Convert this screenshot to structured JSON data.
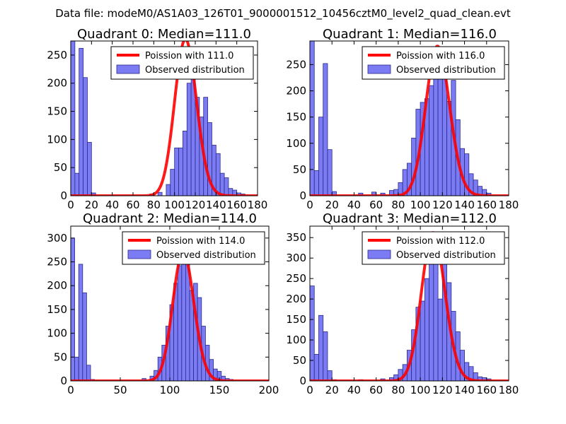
{
  "figure_title": "Data file: modeM0/AS1A03_126T01_9000001512_10456cztM0_level2_quad_clean.evt",
  "colors": {
    "bar_fill": "#7b7bf3",
    "bar_edge": "#2b2b8a",
    "curve": "#ff0000",
    "axis": "#000000"
  },
  "chart_data": [
    {
      "type": "bar",
      "title": "Quadrant 0: Median=111.0",
      "xlim": [
        0,
        180
      ],
      "ylim": [
        0,
        275
      ],
      "xticks": [
        0,
        20,
        40,
        60,
        80,
        100,
        120,
        140,
        160,
        180
      ],
      "yticks": [
        0,
        50,
        100,
        150,
        200,
        250
      ],
      "bin_width": 4,
      "bins": [
        [
          0,
          275
        ],
        [
          4,
          40
        ],
        [
          8,
          262
        ],
        [
          12,
          210
        ],
        [
          16,
          95
        ],
        [
          20,
          5
        ],
        [
          76,
          3
        ],
        [
          84,
          6
        ],
        [
          92,
          20
        ],
        [
          96,
          47
        ],
        [
          100,
          85
        ],
        [
          104,
          85
        ],
        [
          108,
          115
        ],
        [
          112,
          200
        ],
        [
          116,
          230
        ],
        [
          120,
          175
        ],
        [
          124,
          140
        ],
        [
          128,
          175
        ],
        [
          132,
          130
        ],
        [
          136,
          90
        ],
        [
          140,
          75
        ],
        [
          144,
          40
        ],
        [
          148,
          32
        ],
        [
          152,
          13
        ],
        [
          156,
          10
        ],
        [
          160,
          5
        ],
        [
          164,
          3
        ]
      ],
      "poisson_lambda": 111.0,
      "poisson_scale": 278,
      "legend": [
        "Poission with 111.0",
        "Observed distribution"
      ]
    },
    {
      "type": "bar",
      "title": "Quadrant 1: Median=116.0",
      "xlim": [
        0,
        180
      ],
      "ylim": [
        0,
        295
      ],
      "xticks": [
        0,
        20,
        40,
        60,
        80,
        100,
        120,
        140,
        160,
        180
      ],
      "yticks": [
        0,
        50,
        100,
        150,
        200,
        250
      ],
      "bin_width": 4,
      "bins": [
        [
          0,
          295
        ],
        [
          4,
          48
        ],
        [
          8,
          150
        ],
        [
          12,
          252
        ],
        [
          16,
          88
        ],
        [
          20,
          8
        ],
        [
          44,
          5
        ],
        [
          56,
          7
        ],
        [
          64,
          5
        ],
        [
          72,
          10
        ],
        [
          76,
          12
        ],
        [
          80,
          25
        ],
        [
          84,
          50
        ],
        [
          88,
          62
        ],
        [
          92,
          110
        ],
        [
          96,
          165
        ],
        [
          100,
          178
        ],
        [
          104,
          185
        ],
        [
          108,
          210
        ],
        [
          112,
          235
        ],
        [
          116,
          265
        ],
        [
          120,
          240
        ],
        [
          124,
          180
        ],
        [
          128,
          220
        ],
        [
          132,
          145
        ],
        [
          136,
          90
        ],
        [
          140,
          80
        ],
        [
          144,
          42
        ],
        [
          148,
          30
        ],
        [
          152,
          18
        ],
        [
          156,
          12
        ],
        [
          160,
          5
        ]
      ],
      "poisson_lambda": 116.0,
      "poisson_scale": 285,
      "legend": [
        "Poission with 116.0",
        "Observed distribution"
      ]
    },
    {
      "type": "bar",
      "title": "Quadrant 2: Median=114.0",
      "xlim": [
        0,
        200
      ],
      "ylim": [
        0,
        325
      ],
      "xticks": [
        0,
        50,
        100,
        150,
        200
      ],
      "yticks": [
        0,
        50,
        100,
        150,
        200,
        250,
        300
      ],
      "bin_width": 4,
      "bins": [
        [
          0,
          300
        ],
        [
          4,
          50
        ],
        [
          8,
          245
        ],
        [
          12,
          185
        ],
        [
          16,
          33
        ],
        [
          20,
          3
        ],
        [
          72,
          5
        ],
        [
          80,
          10
        ],
        [
          84,
          22
        ],
        [
          88,
          50
        ],
        [
          92,
          75
        ],
        [
          96,
          115
        ],
        [
          100,
          160
        ],
        [
          104,
          205
        ],
        [
          108,
          242
        ],
        [
          112,
          265
        ],
        [
          116,
          255
        ],
        [
          120,
          190
        ],
        [
          124,
          205
        ],
        [
          128,
          175
        ],
        [
          132,
          115
        ],
        [
          136,
          75
        ],
        [
          140,
          45
        ],
        [
          144,
          25
        ],
        [
          148,
          20
        ],
        [
          152,
          10
        ],
        [
          156,
          5
        ],
        [
          160,
          3
        ]
      ],
      "poisson_lambda": 114.0,
      "poisson_scale": 270,
      "legend": [
        "Poission with 114.0",
        "Observed distribution"
      ]
    },
    {
      "type": "bar",
      "title": "Quadrant 3: Median=112.0",
      "xlim": [
        0,
        180
      ],
      "ylim": [
        0,
        378
      ],
      "xticks": [
        0,
        20,
        40,
        60,
        80,
        100,
        120,
        140,
        160,
        180
      ],
      "yticks": [
        0,
        50,
        100,
        150,
        200,
        250,
        300,
        350
      ],
      "bin_width": 4,
      "bins": [
        [
          0,
          232
        ],
        [
          4,
          65
        ],
        [
          8,
          160
        ],
        [
          12,
          120
        ],
        [
          16,
          25
        ],
        [
          20,
          3
        ],
        [
          44,
          3
        ],
        [
          64,
          5
        ],
        [
          72,
          8
        ],
        [
          76,
          15
        ],
        [
          80,
          28
        ],
        [
          84,
          40
        ],
        [
          88,
          75
        ],
        [
          92,
          125
        ],
        [
          96,
          180
        ],
        [
          100,
          195
        ],
        [
          104,
          250
        ],
        [
          108,
          310
        ],
        [
          112,
          330
        ],
        [
          116,
          200
        ],
        [
          120,
          295
        ],
        [
          124,
          240
        ],
        [
          128,
          170
        ],
        [
          132,
          120
        ],
        [
          136,
          75
        ],
        [
          140,
          45
        ],
        [
          144,
          35
        ],
        [
          148,
          20
        ],
        [
          152,
          10
        ],
        [
          156,
          8
        ],
        [
          160,
          5
        ]
      ],
      "poisson_lambda": 112.0,
      "poisson_scale": 362,
      "legend": [
        "Poission with 112.0",
        "Observed distribution"
      ]
    }
  ]
}
